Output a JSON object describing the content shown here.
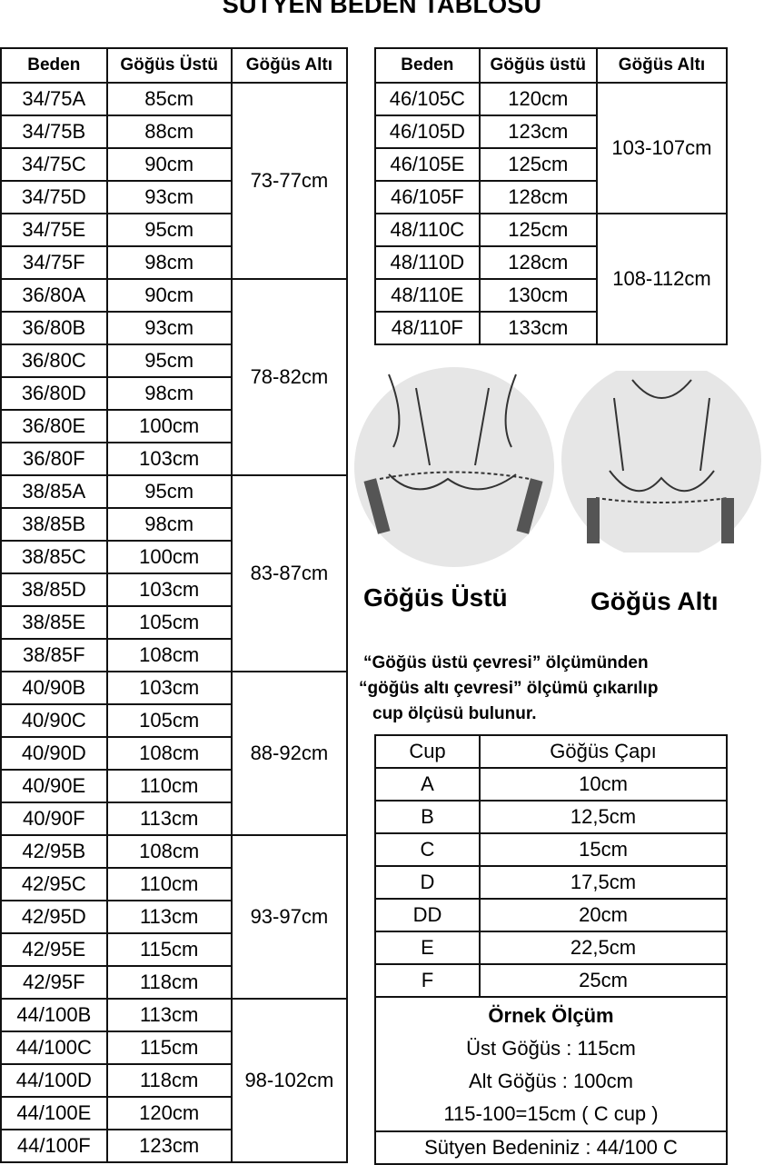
{
  "title": "SÜTYEN BEDEN TABLOSU",
  "left_table": {
    "headers": [
      "Beden",
      "Göğüs Üstü",
      "Göğüs Altı"
    ],
    "groups": [
      {
        "under": "73-77cm",
        "rows": [
          [
            "34/75A",
            "85cm"
          ],
          [
            "34/75B",
            "88cm"
          ],
          [
            "34/75C",
            "90cm"
          ],
          [
            "34/75D",
            "93cm"
          ],
          [
            "34/75E",
            "95cm"
          ],
          [
            "34/75F",
            "98cm"
          ]
        ]
      },
      {
        "under": "78-82cm",
        "rows": [
          [
            "36/80A",
            "90cm"
          ],
          [
            "36/80B",
            "93cm"
          ],
          [
            "36/80C",
            "95cm"
          ],
          [
            "36/80D",
            "98cm"
          ],
          [
            "36/80E",
            "100cm"
          ],
          [
            "36/80F",
            "103cm"
          ]
        ]
      },
      {
        "under": "83-87cm",
        "rows": [
          [
            "38/85A",
            "95cm"
          ],
          [
            "38/85B",
            "98cm"
          ],
          [
            "38/85C",
            "100cm"
          ],
          [
            "38/85D",
            "103cm"
          ],
          [
            "38/85E",
            "105cm"
          ],
          [
            "38/85F",
            "108cm"
          ]
        ]
      },
      {
        "under": "88-92cm",
        "rows": [
          [
            "40/90B",
            "103cm"
          ],
          [
            "40/90C",
            "105cm"
          ],
          [
            "40/90D",
            "108cm"
          ],
          [
            "40/90E",
            "110cm"
          ],
          [
            "40/90F",
            "113cm"
          ]
        ]
      },
      {
        "under": "93-97cm",
        "rows": [
          [
            "42/95B",
            "108cm"
          ],
          [
            "42/95C",
            "110cm"
          ],
          [
            "42/95D",
            "113cm"
          ],
          [
            "42/95E",
            "115cm"
          ],
          [
            "42/95F",
            "118cm"
          ]
        ]
      },
      {
        "under": "98-102cm",
        "rows": [
          [
            "44/100B",
            "113cm"
          ],
          [
            "44/100C",
            "115cm"
          ],
          [
            "44/100D",
            "118cm"
          ],
          [
            "44/100E",
            "120cm"
          ],
          [
            "44/100F",
            "123cm"
          ]
        ]
      }
    ]
  },
  "right_table": {
    "headers": [
      "Beden",
      "Göğüs üstü",
      "Göğüs Altı"
    ],
    "groups": [
      {
        "under": "103-107cm",
        "rows": [
          [
            "46/105C",
            "120cm"
          ],
          [
            "46/105D",
            "123cm"
          ],
          [
            "46/105E",
            "125cm"
          ],
          [
            "46/105F",
            "128cm"
          ]
        ]
      },
      {
        "under": "108-112cm",
        "rows": [
          [
            "48/110C",
            "125cm"
          ],
          [
            "48/110D",
            "128cm"
          ],
          [
            "48/110E",
            "130cm"
          ],
          [
            "48/110F",
            "133cm"
          ]
        ]
      }
    ]
  },
  "illustrations": {
    "left_label": "Göğüs Üstü",
    "right_label": "Göğüs Altı"
  },
  "note": [
    "“Göğüs üstü çevresi” ölçümünden",
    "“göğüs altı çevresi” ölçümü çıkarılıp",
    "cup ölçüsü bulunur."
  ],
  "cup_table": {
    "headers": [
      "Cup",
      "Göğüs Çapı"
    ],
    "rows": [
      [
        "A",
        "10cm"
      ],
      [
        "B",
        "12,5cm"
      ],
      [
        "C",
        "15cm"
      ],
      [
        "D",
        "17,5cm"
      ],
      [
        "DD",
        "20cm"
      ],
      [
        "E",
        "22,5cm"
      ],
      [
        "F",
        "25cm"
      ]
    ],
    "example_title": "Örnek Ölçüm",
    "example_lines": [
      "Üst Göğüs : 115cm",
      "Alt Göğüs  : 100cm",
      "115-100=15cm ( C cup )"
    ],
    "result": "Sütyen Bedeniniz : 44/100 C"
  }
}
